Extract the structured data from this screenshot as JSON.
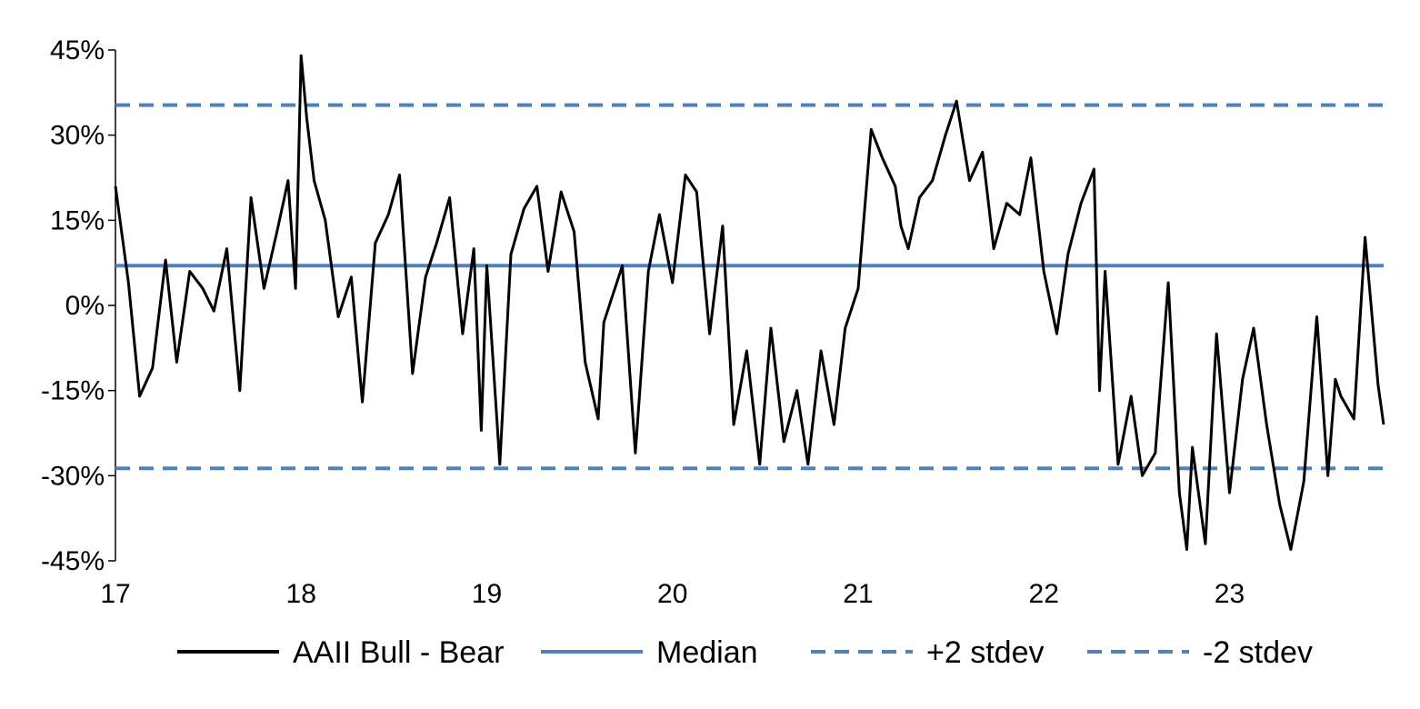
{
  "chart_data": {
    "type": "line",
    "title": "",
    "xlabel": "",
    "ylabel": "",
    "xlim": [
      17,
      23.83
    ],
    "ylim": [
      -45,
      45
    ],
    "x_ticks": [
      17,
      18,
      19,
      20,
      21,
      22,
      23
    ],
    "x_tick_labels": [
      "17",
      "18",
      "19",
      "20",
      "21",
      "22",
      "23"
    ],
    "y_ticks": [
      45,
      30,
      15,
      0,
      -15,
      -30,
      -45
    ],
    "y_tick_labels": [
      "45%",
      "30%",
      "15%",
      "0%",
      "-15%",
      "-30%",
      "-45%"
    ],
    "grid": false,
    "legend_position": "bottom",
    "colors": {
      "bull_bear": "#000000",
      "median": "#4f81bd",
      "band": "#4f81bd"
    },
    "legend": [
      {
        "key": "bull_bear",
        "label": "AAII Bull - Bear",
        "style": "solid"
      },
      {
        "key": "median",
        "label": "Median",
        "style": "solid"
      },
      {
        "key": "plus2",
        "label": "+2 stdev",
        "style": "dashed"
      },
      {
        "key": "minus2",
        "label": "-2 stdev",
        "style": "dashed"
      }
    ],
    "series": [
      {
        "key": "bull_bear",
        "name": "AAII Bull - Bear",
        "x": [
          17.0,
          17.07,
          17.13,
          17.2,
          17.27,
          17.33,
          17.4,
          17.47,
          17.53,
          17.6,
          17.67,
          17.73,
          17.8,
          17.87,
          17.93,
          17.97,
          18.0,
          18.03,
          18.07,
          18.13,
          18.2,
          18.27,
          18.33,
          18.4,
          18.47,
          18.53,
          18.6,
          18.67,
          18.73,
          18.8,
          18.87,
          18.93,
          18.97,
          19.0,
          19.07,
          19.13,
          19.2,
          19.27,
          19.33,
          19.4,
          19.47,
          19.53,
          19.6,
          19.63,
          19.67,
          19.73,
          19.8,
          19.87,
          19.93,
          20.0,
          20.07,
          20.13,
          20.2,
          20.27,
          20.33,
          20.4,
          20.47,
          20.53,
          20.6,
          20.67,
          20.73,
          20.8,
          20.87,
          20.93,
          21.0,
          21.07,
          21.13,
          21.2,
          21.23,
          21.27,
          21.33,
          21.4,
          21.47,
          21.53,
          21.6,
          21.67,
          21.73,
          21.8,
          21.87,
          21.93,
          22.0,
          22.07,
          22.13,
          22.2,
          22.27,
          22.3,
          22.33,
          22.4,
          22.47,
          22.53,
          22.6,
          22.67,
          22.73,
          22.77,
          22.8,
          22.87,
          22.93,
          23.0,
          23.07,
          23.13,
          23.2,
          23.27,
          23.33,
          23.4,
          23.47,
          23.53,
          23.57,
          23.6,
          23.67,
          23.73,
          23.8,
          23.83
        ],
        "values": [
          21,
          4,
          -16,
          -11,
          8,
          -10,
          6,
          3,
          -1,
          10,
          -15,
          19,
          3,
          13,
          22,
          3,
          44,
          33,
          22,
          15,
          -2,
          5,
          -17,
          11,
          16,
          23,
          -12,
          5,
          11,
          19,
          -5,
          10,
          -22,
          7,
          -28,
          9,
          17,
          21,
          6,
          20,
          13,
          -10,
          -20,
          -3,
          1,
          7,
          -26,
          6,
          16,
          4,
          23,
          20,
          -5,
          14,
          -21,
          -8,
          -28,
          -4,
          -24,
          -15,
          -28,
          -8,
          -21,
          -4,
          3,
          31,
          26,
          21,
          14,
          10,
          19,
          22,
          30,
          36,
          22,
          27,
          10,
          18,
          16,
          26,
          6,
          -5,
          9,
          18,
          24,
          -15,
          6,
          -28,
          -16,
          -30,
          -26,
          4,
          -33,
          -43,
          -25,
          -42,
          -5,
          -33,
          -13,
          -4,
          -21,
          -35,
          -43,
          -31,
          -2,
          -30,
          -13,
          -16,
          -20,
          12,
          -14,
          -21
        ],
        "style": "solid"
      },
      {
        "key": "median",
        "name": "Median",
        "x": [
          17.0,
          23.83
        ],
        "values": [
          7,
          7
        ],
        "style": "solid"
      },
      {
        "key": "plus2",
        "name": "+2 stdev",
        "x": [
          17.0,
          23.83
        ],
        "values": [
          35.3,
          35.3
        ],
        "style": "dashed"
      },
      {
        "key": "minus2",
        "name": "-2 stdev",
        "x": [
          17.0,
          23.83
        ],
        "values": [
          -28.7,
          -28.7
        ],
        "style": "dashed"
      }
    ]
  }
}
